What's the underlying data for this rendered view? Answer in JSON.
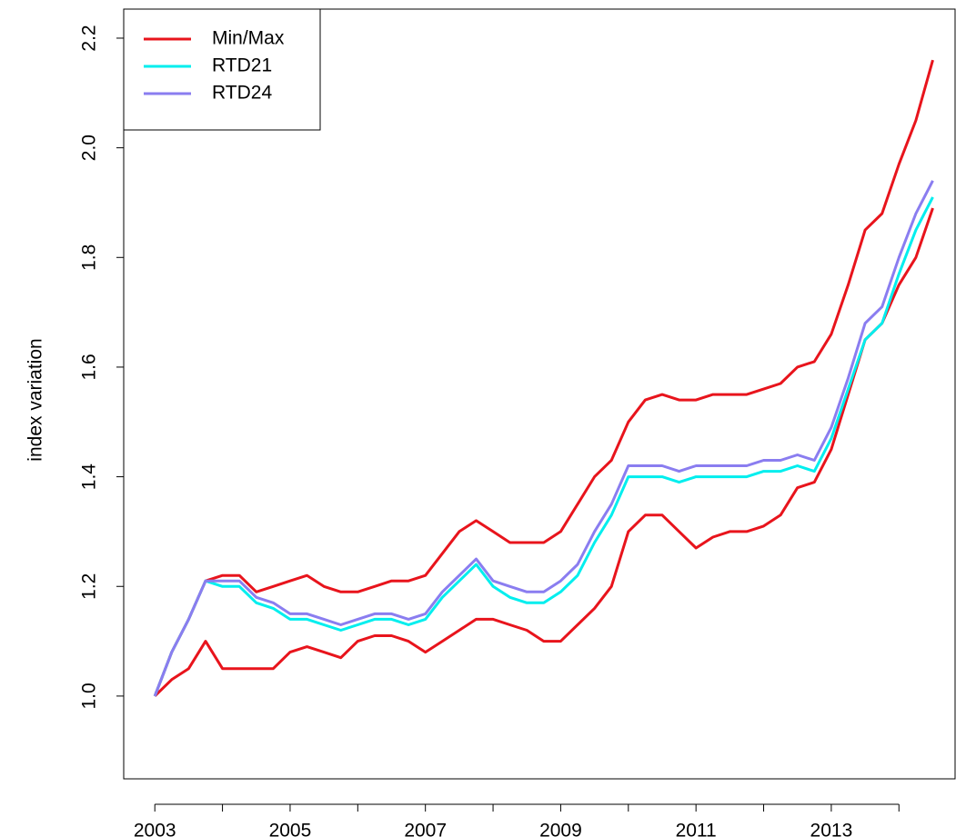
{
  "chart_data": {
    "type": "line",
    "ylabel": "index variation",
    "x": [
      2003.0,
      2003.25,
      2003.5,
      2003.75,
      2004.0,
      2004.25,
      2004.5,
      2004.75,
      2005.0,
      2005.25,
      2005.5,
      2005.75,
      2006.0,
      2006.25,
      2006.5,
      2006.75,
      2007.0,
      2007.25,
      2007.5,
      2007.75,
      2008.0,
      2008.25,
      2008.5,
      2008.75,
      2009.0,
      2009.25,
      2009.5,
      2009.75,
      2010.0,
      2010.25,
      2010.5,
      2010.75,
      2011.0,
      2011.25,
      2011.5,
      2011.75,
      2012.0,
      2012.25,
      2012.5,
      2012.75,
      2013.0,
      2013.25,
      2013.5,
      2013.75,
      2014.0,
      2014.25,
      2014.5
    ],
    "series": [
      {
        "name": "Min/Max",
        "color": "#e8141c",
        "upper": [
          1.0,
          1.08,
          1.14,
          1.21,
          1.22,
          1.22,
          1.19,
          1.2,
          1.21,
          1.22,
          1.2,
          1.19,
          1.19,
          1.2,
          1.21,
          1.21,
          1.22,
          1.26,
          1.3,
          1.32,
          1.3,
          1.28,
          1.28,
          1.28,
          1.3,
          1.35,
          1.4,
          1.43,
          1.5,
          1.54,
          1.55,
          1.54,
          1.54,
          1.55,
          1.55,
          1.55,
          1.56,
          1.57,
          1.6,
          1.61,
          1.66,
          1.75,
          1.85,
          1.88,
          1.97,
          2.05,
          2.16
        ],
        "lower": [
          1.0,
          1.03,
          1.05,
          1.1,
          1.05,
          1.05,
          1.05,
          1.05,
          1.08,
          1.09,
          1.08,
          1.07,
          1.1,
          1.11,
          1.11,
          1.1,
          1.08,
          1.1,
          1.12,
          1.14,
          1.14,
          1.13,
          1.12,
          1.1,
          1.1,
          1.13,
          1.16,
          1.2,
          1.3,
          1.33,
          1.33,
          1.3,
          1.27,
          1.29,
          1.3,
          1.3,
          1.31,
          1.33,
          1.38,
          1.39,
          1.45,
          1.55,
          1.65,
          1.68,
          1.75,
          1.8,
          1.89
        ]
      },
      {
        "name": "RTD21",
        "color": "#00eeee",
        "values": [
          1.0,
          1.08,
          1.14,
          1.21,
          1.2,
          1.2,
          1.17,
          1.16,
          1.14,
          1.14,
          1.13,
          1.12,
          1.13,
          1.14,
          1.14,
          1.13,
          1.14,
          1.18,
          1.21,
          1.24,
          1.2,
          1.18,
          1.17,
          1.17,
          1.19,
          1.22,
          1.28,
          1.33,
          1.4,
          1.4,
          1.4,
          1.39,
          1.4,
          1.4,
          1.4,
          1.4,
          1.41,
          1.41,
          1.42,
          1.41,
          1.47,
          1.56,
          1.65,
          1.68,
          1.77,
          1.85,
          1.91
        ]
      },
      {
        "name": "RTD24",
        "color": "#8a7df0",
        "values": [
          1.0,
          1.08,
          1.14,
          1.21,
          1.21,
          1.21,
          1.18,
          1.17,
          1.15,
          1.15,
          1.14,
          1.13,
          1.14,
          1.15,
          1.15,
          1.14,
          1.15,
          1.19,
          1.22,
          1.25,
          1.21,
          1.2,
          1.19,
          1.19,
          1.21,
          1.24,
          1.3,
          1.35,
          1.42,
          1.42,
          1.42,
          1.41,
          1.42,
          1.42,
          1.42,
          1.42,
          1.43,
          1.43,
          1.44,
          1.43,
          1.49,
          1.58,
          1.68,
          1.71,
          1.8,
          1.88,
          1.94
        ]
      }
    ],
    "xlim": [
      2002.54,
      2014.83
    ],
    "ylim": [
      0.849,
      2.253
    ],
    "xticks": [
      2003,
      {
        "value": 2004,
        "label": null
      },
      2005,
      {
        "value": 2006,
        "label": null
      },
      2007,
      {
        "value": 2008,
        "label": null
      },
      2009,
      {
        "value": 2010,
        "label": null
      },
      2011,
      {
        "value": 2012,
        "label": null
      },
      2013,
      {
        "value": 2014,
        "label": null
      }
    ],
    "yticks": [
      {
        "value": 1,
        "label": "1.0"
      },
      1.2,
      1.4,
      1.6,
      1.8,
      {
        "value": 2,
        "label": "2.0"
      },
      2.2
    ],
    "legend": "top-left"
  }
}
